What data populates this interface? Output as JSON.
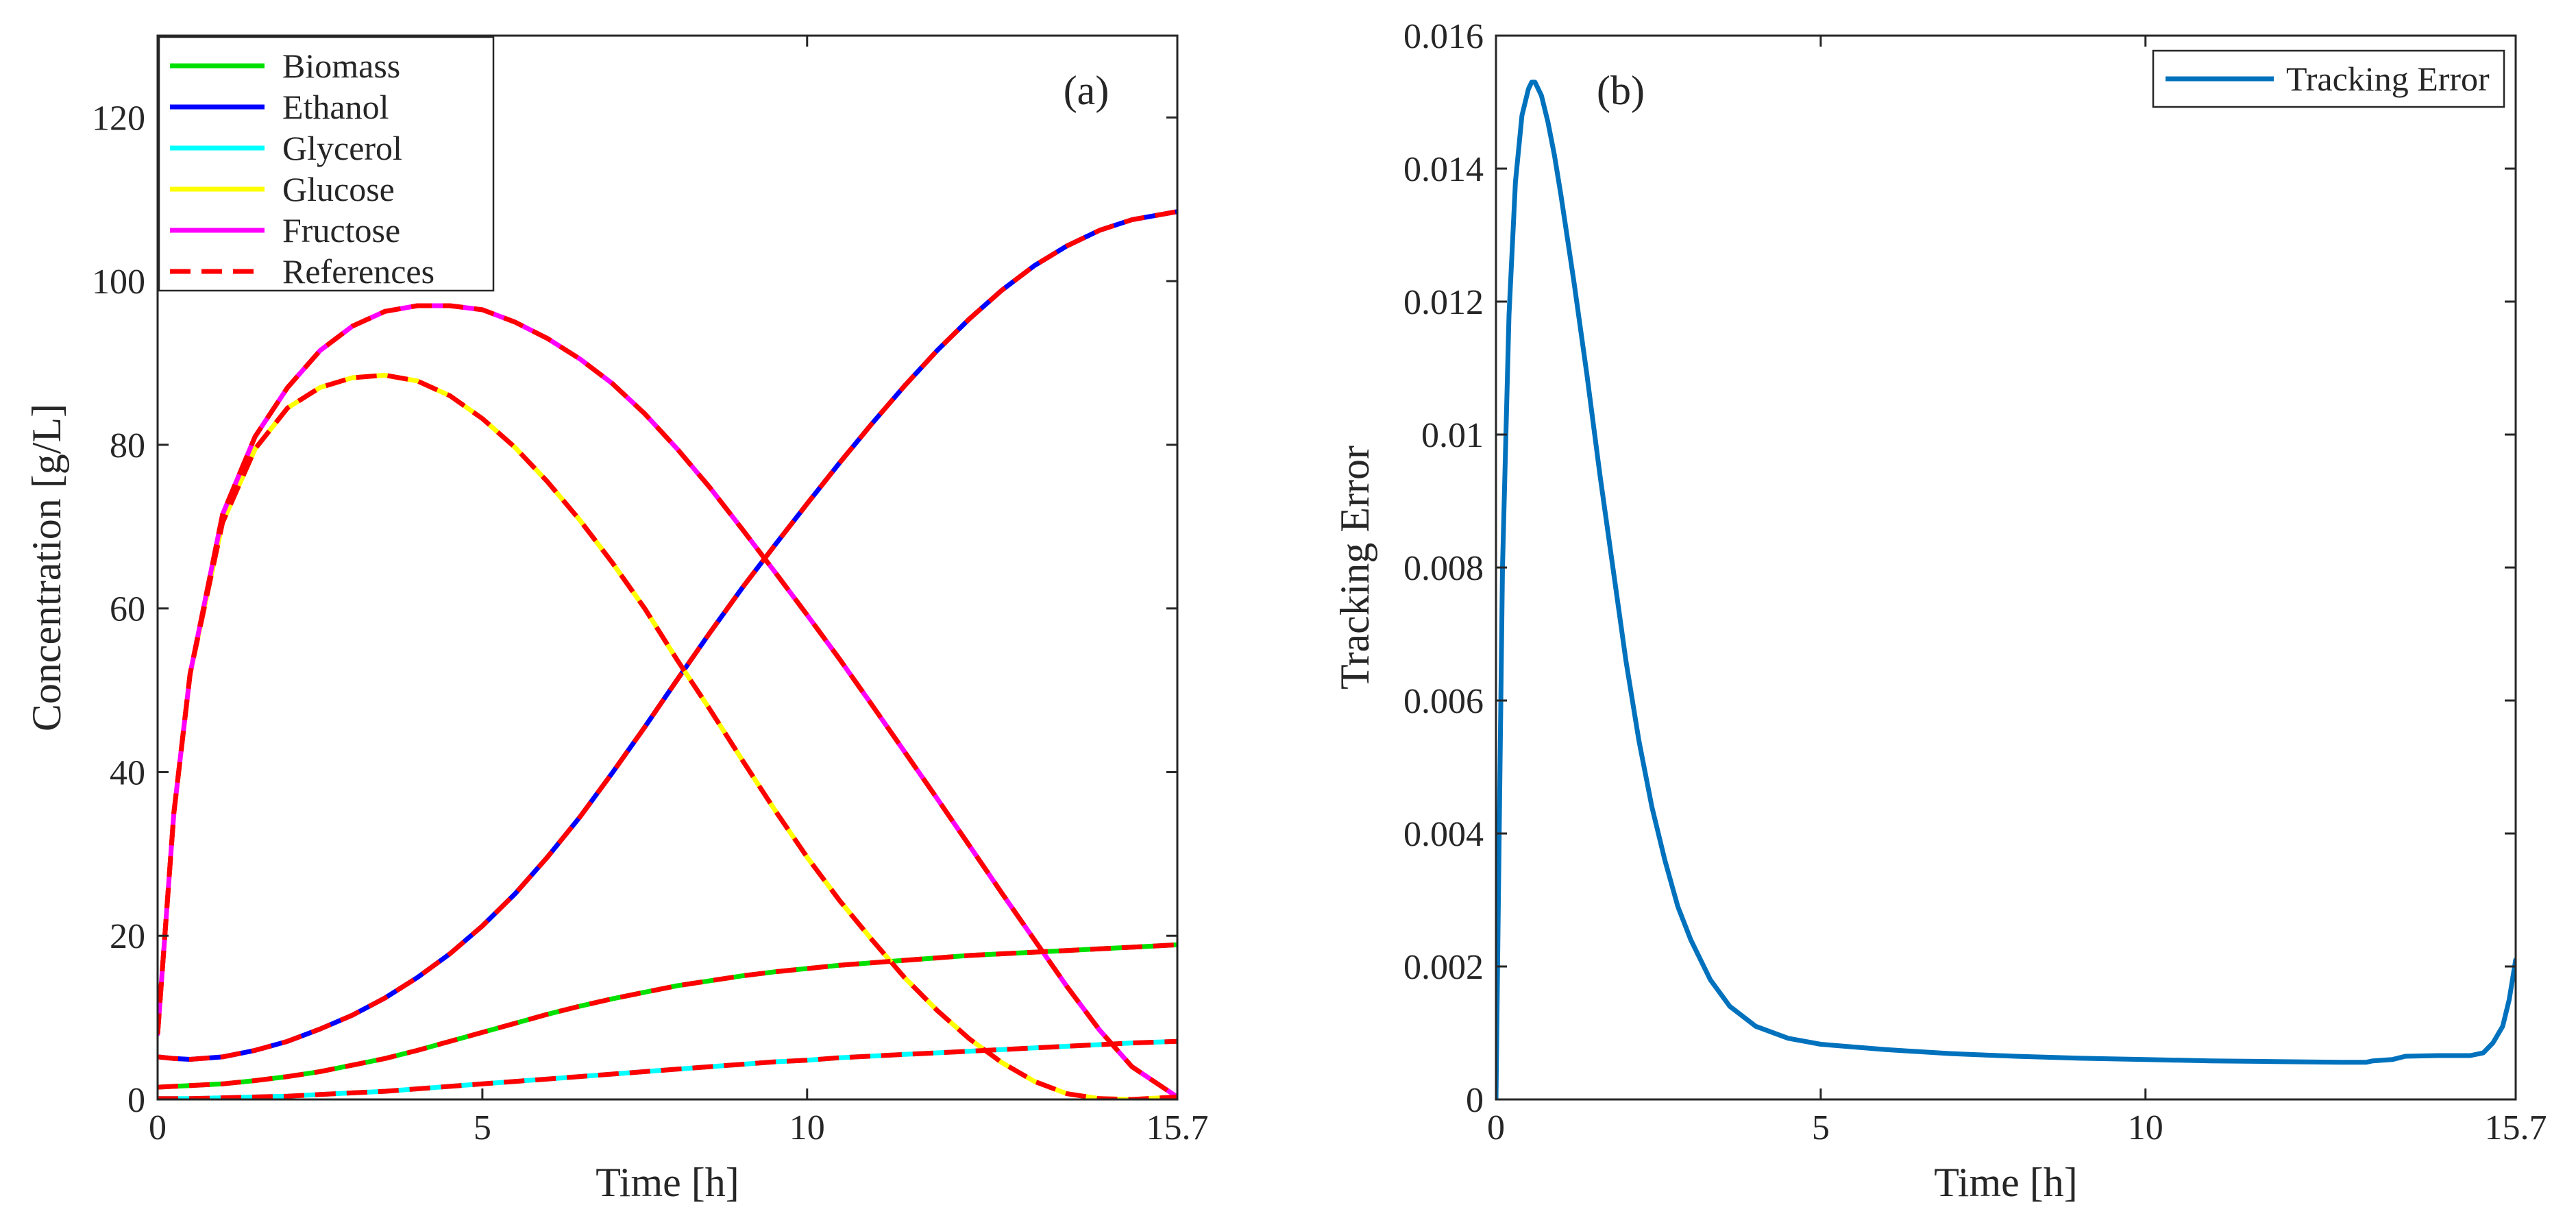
{
  "chart_data": [
    {
      "type": "line",
      "panel_label": "(a)",
      "xlabel": "Time [h]",
      "ylabel": "Concentration [g/L]",
      "xlim": [
        0,
        15.7
      ],
      "ylim": [
        0,
        130
      ],
      "xticks": [
        0,
        5,
        10,
        15.7
      ],
      "xtick_labels": [
        "0",
        "5",
        "10",
        "15.7"
      ],
      "yticks": [
        0,
        20,
        40,
        60,
        80,
        100,
        120
      ],
      "ytick_labels": [
        "0",
        "20",
        "40",
        "60",
        "80",
        "100",
        "120"
      ],
      "grid": false,
      "legend_position": "top-left",
      "x": [
        0,
        0.25,
        0.5,
        1,
        1.5,
        2,
        2.5,
        3,
        3.5,
        4,
        4.5,
        5,
        5.5,
        6,
        6.5,
        7,
        7.5,
        8,
        8.5,
        9,
        9.5,
        10,
        10.5,
        11,
        11.5,
        12,
        12.5,
        13,
        13.5,
        14,
        14.5,
        15,
        15.7
      ],
      "series": [
        {
          "name": "Biomass",
          "color": "#00e000",
          "values": [
            1.5,
            1.6,
            1.7,
            1.9,
            2.3,
            2.8,
            3.4,
            4.2,
            5.0,
            6.0,
            7.1,
            8.2,
            9.3,
            10.4,
            11.4,
            12.3,
            13.1,
            13.9,
            14.5,
            15.1,
            15.6,
            16.0,
            16.4,
            16.7,
            17.0,
            17.3,
            17.6,
            17.8,
            18.0,
            18.2,
            18.4,
            18.6,
            18.9
          ]
        },
        {
          "name": "Ethanol",
          "color": "#0000ff",
          "values": [
            5.2,
            5.0,
            4.9,
            5.2,
            6.0,
            7.1,
            8.6,
            10.3,
            12.4,
            14.9,
            17.8,
            21.2,
            25.1,
            29.6,
            34.5,
            39.9,
            45.5,
            51.3,
            57.0,
            62.5,
            67.7,
            72.8,
            77.8,
            82.6,
            87.2,
            91.5,
            95.4,
            98.9,
            101.9,
            104.3,
            106.2,
            107.5,
            108.5
          ]
        },
        {
          "name": "Glycerol",
          "color": "#00ffff",
          "values": [
            0.1,
            0.1,
            0.1,
            0.2,
            0.3,
            0.4,
            0.6,
            0.8,
            1.0,
            1.3,
            1.6,
            1.9,
            2.2,
            2.5,
            2.8,
            3.1,
            3.4,
            3.7,
            4.0,
            4.3,
            4.6,
            4.8,
            5.1,
            5.3,
            5.5,
            5.7,
            5.9,
            6.1,
            6.3,
            6.5,
            6.7,
            6.9,
            7.1
          ]
        },
        {
          "name": "Glucose",
          "color": "#ffff00",
          "values": [
            8.0,
            35.0,
            52.0,
            70.5,
            79.5,
            84.5,
            87.0,
            88.2,
            88.5,
            87.8,
            86.0,
            83.2,
            79.7,
            75.5,
            70.8,
            65.6,
            60.0,
            53.7,
            47.7,
            41.5,
            35.4,
            29.6,
            24.3,
            19.5,
            14.9,
            10.9,
            7.4,
            4.5,
            2.2,
            0.7,
            0.1,
            0.0,
            0.3
          ]
        },
        {
          "name": "Fructose",
          "color": "#ff00ff",
          "values": [
            8.0,
            35.0,
            52.0,
            71.5,
            81.0,
            87.0,
            91.5,
            94.5,
            96.3,
            97.0,
            97.0,
            96.5,
            95.0,
            93.0,
            90.5,
            87.5,
            83.8,
            79.5,
            74.8,
            69.7,
            64.5,
            59.2,
            53.8,
            48.2,
            42.5,
            36.8,
            31.0,
            25.2,
            19.5,
            13.8,
            8.5,
            4.0,
            0.3
          ]
        }
      ],
      "references": {
        "name": "References",
        "color": "#ff0000",
        "style": "dashed",
        "follows": [
          "Biomass",
          "Ethanol",
          "Glycerol",
          "Glucose",
          "Fructose"
        ]
      },
      "legend": [
        "Biomass",
        "Ethanol",
        "Glycerol",
        "Glucose",
        "Fructose",
        "References"
      ]
    },
    {
      "type": "line",
      "panel_label": "(b)",
      "xlabel": "Time [h]",
      "ylabel": "Tracking Error",
      "xlim": [
        0,
        15.7
      ],
      "ylim": [
        0,
        0.016
      ],
      "xticks": [
        0,
        5,
        10,
        15.7
      ],
      "xtick_labels": [
        "0",
        "5",
        "10",
        "15.7"
      ],
      "yticks": [
        0,
        0.002,
        0.004,
        0.006,
        0.008,
        0.01,
        0.012,
        0.014,
        0.016
      ],
      "ytick_labels": [
        "0",
        "0.002",
        "0.004",
        "0.006",
        "0.008",
        "0.01",
        "0.012",
        "0.014",
        "0.016"
      ],
      "grid": false,
      "legend_position": "top-right",
      "series": [
        {
          "name": "Tracking Error",
          "color": "#0072bd",
          "x": [
            0,
            0.05,
            0.1,
            0.2,
            0.3,
            0.4,
            0.5,
            0.55,
            0.6,
            0.65,
            0.7,
            0.8,
            0.9,
            1.0,
            1.2,
            1.4,
            1.6,
            1.8,
            2.0,
            2.2,
            2.4,
            2.6,
            2.8,
            3.0,
            3.3,
            3.6,
            4.0,
            4.5,
            5.0,
            6.0,
            7.0,
            8.0,
            9.0,
            10.0,
            11.0,
            12.0,
            13.0,
            13.4,
            13.5,
            13.8,
            14.0,
            14.5,
            15.0,
            15.2,
            15.35,
            15.5,
            15.6,
            15.7
          ],
          "values": [
            0.0,
            0.004,
            0.008,
            0.0118,
            0.0138,
            0.0148,
            0.0152,
            0.0153,
            0.0153,
            0.0152,
            0.0151,
            0.0147,
            0.0142,
            0.0136,
            0.0123,
            0.0109,
            0.0094,
            0.008,
            0.0066,
            0.0054,
            0.0044,
            0.0036,
            0.0029,
            0.0024,
            0.0018,
            0.0014,
            0.0011,
            0.00092,
            0.00083,
            0.00075,
            0.00069,
            0.00065,
            0.00062,
            0.0006,
            0.00058,
            0.00057,
            0.00056,
            0.00056,
            0.00058,
            0.0006,
            0.00065,
            0.00066,
            0.00066,
            0.0007,
            0.00085,
            0.0011,
            0.0015,
            0.0021
          ]
        }
      ],
      "legend": [
        "Tracking Error"
      ]
    }
  ]
}
